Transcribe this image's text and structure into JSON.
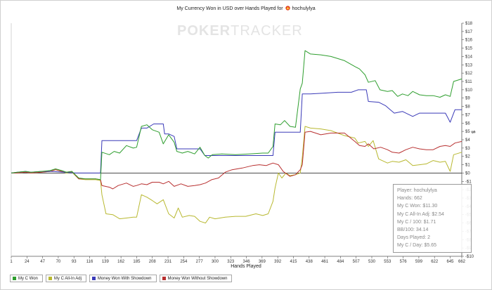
{
  "header": {
    "title_prefix": "My Currency Won in USD over Hands Played for",
    "player_name": "hochulylya",
    "player_icon": "pokerstars-star-icon"
  },
  "watermark": {
    "part1": "POKER",
    "part2": "TRACKER"
  },
  "stats": {
    "player": "Player: hochulylya",
    "hands": "Hands: 662",
    "won": "My C Won: $11.30",
    "allin": "My C All-In Adj: $2.54",
    "per100": "My C / 100: $1.71",
    "bb100": "BB/100: 34.14",
    "days": "Days Played: 2",
    "per_day": "My C / Day: $5.65"
  },
  "chart_data": {
    "type": "line",
    "title": "My Currency Won in USD over Hands Played for hochulylya",
    "xlabel": "Hands Played",
    "ylabel": "$",
    "xlim": [
      1,
      662
    ],
    "ylim": [
      -10,
      18
    ],
    "x_ticks": [
      1,
      24,
      47,
      70,
      93,
      116,
      139,
      162,
      185,
      208,
      231,
      254,
      277,
      300,
      323,
      346,
      369,
      392,
      415,
      438,
      461,
      484,
      507,
      530,
      553,
      576,
      599,
      622,
      645,
      662
    ],
    "y_ticks": [
      -10,
      -9,
      -8,
      -7,
      -6,
      -5,
      -4,
      -3,
      -2,
      -1,
      0,
      1,
      2,
      3,
      4,
      5,
      6,
      7,
      8,
      9,
      10,
      11,
      12,
      13,
      14,
      15,
      16,
      17,
      18
    ],
    "y_tick_labels": [
      "-$10",
      "-$9",
      "-$8",
      "-$7",
      "-$6",
      "-$5",
      "-$4",
      "-$3",
      "-$2",
      "-$1",
      "$0",
      "$1",
      "$2",
      "$3",
      "$4",
      "$5",
      "$6",
      "$7",
      "$8",
      "$9",
      "$10",
      "$11",
      "$12",
      "$13",
      "$14",
      "$15",
      "$16",
      "$17",
      "$18"
    ],
    "y_axis_side": "right",
    "grid": false,
    "legend_position": "bottom-left",
    "series": [
      {
        "name": "My C Won",
        "color": "#2e9e2e",
        "points": [
          [
            1,
            0
          ],
          [
            10,
            0.1
          ],
          [
            22,
            0.2
          ],
          [
            30,
            0.1
          ],
          [
            45,
            0.2
          ],
          [
            58,
            0.3
          ],
          [
            66,
            0.5
          ],
          [
            75,
            0.3
          ],
          [
            82,
            0.1
          ],
          [
            90,
            0.2
          ],
          [
            100,
            -0.6
          ],
          [
            110,
            -0.7
          ],
          [
            125,
            -0.7
          ],
          [
            132,
            -0.8
          ],
          [
            134,
            2.5
          ],
          [
            145,
            2.2
          ],
          [
            152,
            2.6
          ],
          [
            160,
            2.4
          ],
          [
            170,
            3.3
          ],
          [
            180,
            3.0
          ],
          [
            185,
            3.1
          ],
          [
            192,
            5.6
          ],
          [
            200,
            5.8
          ],
          [
            208,
            5.2
          ],
          [
            218,
            4.9
          ],
          [
            224,
            3.5
          ],
          [
            232,
            4.6
          ],
          [
            240,
            3.7
          ],
          [
            244,
            2.6
          ],
          [
            252,
            2.4
          ],
          [
            260,
            2.6
          ],
          [
            270,
            2.3
          ],
          [
            278,
            3.1
          ],
          [
            285,
            2.1
          ],
          [
            290,
            1.8
          ],
          [
            296,
            2.2
          ],
          [
            310,
            2.3
          ],
          [
            330,
            2.2
          ],
          [
            350,
            2.3
          ],
          [
            370,
            2.4
          ],
          [
            378,
            2.4
          ],
          [
            385,
            3.2
          ],
          [
            388,
            5.9
          ],
          [
            396,
            5.8
          ],
          [
            402,
            6.3
          ],
          [
            410,
            5.6
          ],
          [
            418,
            5.5
          ],
          [
            425,
            10.1
          ],
          [
            428,
            10.8
          ],
          [
            432,
            14.7
          ],
          [
            440,
            14.3
          ],
          [
            455,
            14.2
          ],
          [
            470,
            14.0
          ],
          [
            490,
            13.5
          ],
          [
            505,
            12.8
          ],
          [
            512,
            12.5
          ],
          [
            520,
            11.8
          ],
          [
            525,
            10.9
          ],
          [
            535,
            11.1
          ],
          [
            542,
            10.0
          ],
          [
            553,
            9.8
          ],
          [
            560,
            9.9
          ],
          [
            568,
            9.2
          ],
          [
            575,
            9.5
          ],
          [
            583,
            9.3
          ],
          [
            590,
            9.8
          ],
          [
            600,
            9.4
          ],
          [
            610,
            9.3
          ],
          [
            620,
            9.3
          ],
          [
            630,
            9.1
          ],
          [
            638,
            9.4
          ],
          [
            645,
            9.2
          ],
          [
            650,
            11.0
          ],
          [
            662,
            11.3
          ]
        ]
      },
      {
        "name": "My C All-In Adj",
        "color": "#b8b830",
        "points": [
          [
            1,
            0
          ],
          [
            10,
            0.0
          ],
          [
            22,
            0.1
          ],
          [
            30,
            0.0
          ],
          [
            45,
            0.1
          ],
          [
            58,
            0.2
          ],
          [
            66,
            0.4
          ],
          [
            75,
            0.2
          ],
          [
            82,
            0.0
          ],
          [
            90,
            0.1
          ],
          [
            100,
            -0.7
          ],
          [
            110,
            -0.8
          ],
          [
            125,
            -0.8
          ],
          [
            132,
            -0.9
          ],
          [
            134,
            -2.6
          ],
          [
            140,
            -4.9
          ],
          [
            150,
            -5.0
          ],
          [
            160,
            -5.5
          ],
          [
            170,
            -5.4
          ],
          [
            180,
            -5.3
          ],
          [
            185,
            -5.3
          ],
          [
            192,
            -2.6
          ],
          [
            200,
            -2.9
          ],
          [
            208,
            -3.3
          ],
          [
            215,
            -3.7
          ],
          [
            224,
            -3.2
          ],
          [
            232,
            -4.9
          ],
          [
            240,
            -5.4
          ],
          [
            246,
            -4.2
          ],
          [
            252,
            -5.3
          ],
          [
            262,
            -5.1
          ],
          [
            270,
            -5.2
          ],
          [
            278,
            -5.8
          ],
          [
            286,
            -6.0
          ],
          [
            292,
            -5.3
          ],
          [
            300,
            -5.5
          ],
          [
            315,
            -5.3
          ],
          [
            330,
            -5.2
          ],
          [
            345,
            -5.2
          ],
          [
            360,
            -4.9
          ],
          [
            370,
            -5.1
          ],
          [
            378,
            -4.9
          ],
          [
            385,
            -3.4
          ],
          [
            388,
            -1.8
          ],
          [
            393,
            0.0
          ],
          [
            398,
            -0.6
          ],
          [
            404,
            0.0
          ],
          [
            410,
            -0.3
          ],
          [
            418,
            -0.2
          ],
          [
            425,
            0.0
          ],
          [
            428,
            1.9
          ],
          [
            432,
            5.6
          ],
          [
            440,
            5.4
          ],
          [
            455,
            5.3
          ],
          [
            470,
            5.1
          ],
          [
            490,
            4.5
          ],
          [
            505,
            4.2
          ],
          [
            510,
            3.6
          ],
          [
            520,
            3.8
          ],
          [
            525,
            3.2
          ],
          [
            532,
            3.9
          ],
          [
            540,
            1.7
          ],
          [
            553,
            1.2
          ],
          [
            560,
            1.4
          ],
          [
            570,
            1.3
          ],
          [
            580,
            1.6
          ],
          [
            590,
            0.9
          ],
          [
            600,
            1.0
          ],
          [
            610,
            1.1
          ],
          [
            620,
            1.5
          ],
          [
            630,
            1.3
          ],
          [
            638,
            1.4
          ],
          [
            645,
            0.2
          ],
          [
            650,
            2.2
          ],
          [
            662,
            2.5
          ]
        ]
      },
      {
        "name": "Money Won With Showdown",
        "color": "#3a3ab8",
        "points": [
          [
            1,
            0
          ],
          [
            10,
            0.1
          ],
          [
            22,
            0.2
          ],
          [
            30,
            0.1
          ],
          [
            45,
            0.2
          ],
          [
            60,
            0.2
          ],
          [
            80,
            0.1
          ],
          [
            95,
            0.0
          ],
          [
            110,
            0.0
          ],
          [
            125,
            0.0
          ],
          [
            132,
            0.0
          ],
          [
            134,
            3.9
          ],
          [
            160,
            3.9
          ],
          [
            185,
            3.9
          ],
          [
            192,
            5.4
          ],
          [
            200,
            5.4
          ],
          [
            210,
            5.9
          ],
          [
            224,
            5.9
          ],
          [
            226,
            4.7
          ],
          [
            232,
            4.7
          ],
          [
            240,
            4.4
          ],
          [
            244,
            2.9
          ],
          [
            260,
            2.9
          ],
          [
            270,
            2.9
          ],
          [
            278,
            2.9
          ],
          [
            285,
            2.1
          ],
          [
            300,
            2.1
          ],
          [
            330,
            2.1
          ],
          [
            370,
            2.1
          ],
          [
            385,
            2.1
          ],
          [
            388,
            4.9
          ],
          [
            400,
            4.9
          ],
          [
            418,
            4.9
          ],
          [
            425,
            4.9
          ],
          [
            428,
            9.5
          ],
          [
            440,
            9.5
          ],
          [
            460,
            9.6
          ],
          [
            480,
            9.7
          ],
          [
            500,
            9.7
          ],
          [
            510,
            10.0
          ],
          [
            522,
            10.0
          ],
          [
            525,
            8.6
          ],
          [
            540,
            8.5
          ],
          [
            550,
            8.1
          ],
          [
            557,
            7.6
          ],
          [
            563,
            7.2
          ],
          [
            575,
            7.4
          ],
          [
            590,
            6.8
          ],
          [
            600,
            7.2
          ],
          [
            620,
            7.2
          ],
          [
            638,
            7.2
          ],
          [
            645,
            6.1
          ],
          [
            652,
            7.6
          ],
          [
            662,
            7.6
          ]
        ]
      },
      {
        "name": "Money Won Without Showdown",
        "color": "#b83030",
        "points": [
          [
            1,
            0
          ],
          [
            10,
            0.0
          ],
          [
            22,
            0.1
          ],
          [
            30,
            0.0
          ],
          [
            45,
            0.1
          ],
          [
            58,
            0.2
          ],
          [
            66,
            0.4
          ],
          [
            75,
            0.2
          ],
          [
            82,
            0.1
          ],
          [
            90,
            0.2
          ],
          [
            100,
            -0.7
          ],
          [
            110,
            -0.7
          ],
          [
            125,
            -0.7
          ],
          [
            132,
            -0.8
          ],
          [
            134,
            -1.5
          ],
          [
            145,
            -1.7
          ],
          [
            150,
            -1.9
          ],
          [
            158,
            -1.5
          ],
          [
            170,
            -1.2
          ],
          [
            180,
            -1.6
          ],
          [
            185,
            -1.5
          ],
          [
            192,
            -1.3
          ],
          [
            200,
            -1.4
          ],
          [
            208,
            -1.1
          ],
          [
            218,
            -1.1
          ],
          [
            224,
            -1.3
          ],
          [
            232,
            -1.0
          ],
          [
            240,
            -1.6
          ],
          [
            250,
            -1.3
          ],
          [
            260,
            -1.6
          ],
          [
            270,
            -1.5
          ],
          [
            278,
            -1.4
          ],
          [
            286,
            -1.2
          ],
          [
            295,
            -0.8
          ],
          [
            305,
            -0.6
          ],
          [
            315,
            0.1
          ],
          [
            325,
            0.4
          ],
          [
            340,
            0.6
          ],
          [
            355,
            0.9
          ],
          [
            365,
            1.0
          ],
          [
            375,
            0.9
          ],
          [
            385,
            1.2
          ],
          [
            393,
            1.0
          ],
          [
            400,
            0.2
          ],
          [
            410,
            -0.4
          ],
          [
            418,
            -0.2
          ],
          [
            425,
            0.4
          ],
          [
            428,
            1.0
          ],
          [
            432,
            4.9
          ],
          [
            440,
            5.0
          ],
          [
            455,
            4.6
          ],
          [
            470,
            4.8
          ],
          [
            490,
            4.8
          ],
          [
            505,
            3.8
          ],
          [
            512,
            3.3
          ],
          [
            520,
            3.2
          ],
          [
            525,
            3.5
          ],
          [
            533,
            2.9
          ],
          [
            543,
            3.1
          ],
          [
            553,
            2.8
          ],
          [
            560,
            2.5
          ],
          [
            570,
            2.4
          ],
          [
            580,
            2.8
          ],
          [
            590,
            3.1
          ],
          [
            600,
            2.9
          ],
          [
            610,
            2.8
          ],
          [
            620,
            2.8
          ],
          [
            630,
            3.2
          ],
          [
            638,
            3.3
          ],
          [
            645,
            3.2
          ],
          [
            652,
            3.6
          ],
          [
            662,
            3.8
          ]
        ]
      }
    ]
  }
}
